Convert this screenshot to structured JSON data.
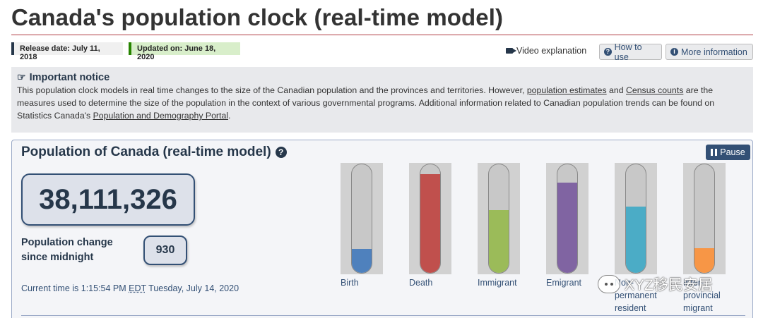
{
  "header": {
    "title": "Canada's population clock (real-time model)",
    "release_date": "Release date: July 11, 2018",
    "updated_on": "Updated on: June 18, 2020"
  },
  "links": {
    "video": "Video explanation",
    "how_to_use": "How to use",
    "more_information": "More information"
  },
  "notice": {
    "title": "Important notice",
    "text_1": "This population clock models in real time changes to the size of the Canadian population and the provinces and territories. However, ",
    "link_1": "population estimates",
    "text_2": " and ",
    "link_2": "Census counts",
    "text_3": " are the measures used to determine the size of the population in the context of various governmental programs. Additional information related to Canadian population trends can be found on Statistics Canada's ",
    "link_3": "Population and Demography Portal",
    "text_4": "."
  },
  "clock": {
    "title": "Population of Canada (real-time model)",
    "pause_label": "Pause",
    "population": "38,111,326",
    "change_label_line1": "Population change",
    "change_label_line2": "since midnight",
    "change_value": "930",
    "time_prefix": "Current time is 1:15:54 PM ",
    "time_zone": "EDT",
    "time_suffix": " Tuesday, July 14, 2020"
  },
  "gauges": [
    {
      "line1": "Birth",
      "line2": "",
      "line3": "",
      "level": 0.22,
      "color": "#4f81bd"
    },
    {
      "line1": "Death",
      "line2": "",
      "line3": "",
      "level": 0.91,
      "color": "#c0504d"
    },
    {
      "line1": "Immigrant",
      "line2": "",
      "line3": "",
      "level": 0.58,
      "color": "#9bbb59"
    },
    {
      "line1": "Emigrant",
      "line2": "",
      "line3": "",
      "level": 0.83,
      "color": "#8064a2"
    },
    {
      "line1": "Non-",
      "line2": "permanent",
      "line3": "resident",
      "level": 0.61,
      "color": "#4bacc6"
    },
    {
      "line1": "Inter-",
      "line2": "provincial",
      "line3": "migrant",
      "level": 0.23,
      "color": "#f79646"
    }
  ],
  "watermark": "XYZ移民安居"
}
